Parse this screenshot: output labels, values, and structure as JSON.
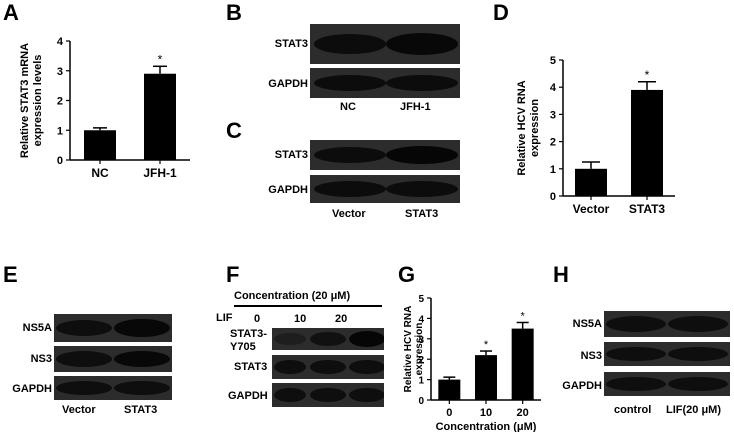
{
  "panels": {
    "A": "A",
    "B": "B",
    "C": "C",
    "D": "D",
    "E": "E",
    "F": "F",
    "G": "G",
    "H": "H"
  },
  "chart_data": [
    {
      "id": "A",
      "type": "bar",
      "categories": [
        "NC",
        "JFH-1"
      ],
      "values": [
        1.0,
        2.9
      ],
      "errors": [
        0.08,
        0.25
      ],
      "significance": [
        "",
        "*"
      ],
      "ylabel": "Relative STAT3 mRNA expression levels",
      "ylabel_lines": [
        "Relative STAT3 mRNA",
        "expression levels"
      ],
      "ylim": [
        0,
        4
      ],
      "yticks": [
        "0",
        "1",
        "2",
        "3",
        "4"
      ]
    },
    {
      "id": "D",
      "type": "bar",
      "categories": [
        "Vector",
        "STAT3"
      ],
      "values": [
        1.0,
        3.9
      ],
      "errors": [
        0.25,
        0.3
      ],
      "significance": [
        "",
        "*"
      ],
      "ylabel": "Relative HCV RNA expression",
      "ylabel_lines": [
        "Relative HCV RNA",
        "expression"
      ],
      "ylim": [
        0,
        5
      ],
      "yticks": [
        "0",
        "1",
        "2",
        "3",
        "4",
        "5"
      ]
    },
    {
      "id": "G",
      "type": "bar",
      "categories": [
        "0",
        "10",
        "20"
      ],
      "values": [
        1.0,
        2.2,
        3.5
      ],
      "errors": [
        0.12,
        0.2,
        0.3
      ],
      "significance": [
        "",
        "*",
        "*"
      ],
      "ylabel": "Relative HCV RNA expression",
      "ylabel_lines": [
        "Relative HCV RNA",
        "expression"
      ],
      "xlabel": "Concentration (μM)",
      "ylim": [
        0,
        5
      ],
      "yticks": [
        "0",
        "1",
        "2",
        "3",
        "4",
        "5"
      ]
    }
  ],
  "blots": {
    "B": {
      "rows": [
        "STAT3",
        "GAPDH"
      ],
      "lanes": [
        "NC",
        "JFH-1"
      ]
    },
    "C": {
      "rows": [
        "STAT3",
        "GAPDH"
      ],
      "lanes": [
        "Vector",
        "STAT3"
      ]
    },
    "E": {
      "rows": [
        "NS5A",
        "NS3",
        "GAPDH"
      ],
      "lanes": [
        "Vector",
        "STAT3"
      ]
    },
    "F": {
      "header": "Concentration (20 μM)",
      "lif_label": "LIF",
      "lif_values": [
        "0",
        "10",
        "20"
      ],
      "rows": [
        "STAT3-Y705",
        "STAT3",
        "GAPDH"
      ]
    },
    "H": {
      "rows": [
        "NS5A",
        "NS3",
        "GAPDH"
      ],
      "lanes": [
        "control",
        "LIF(20 μM)"
      ]
    }
  }
}
